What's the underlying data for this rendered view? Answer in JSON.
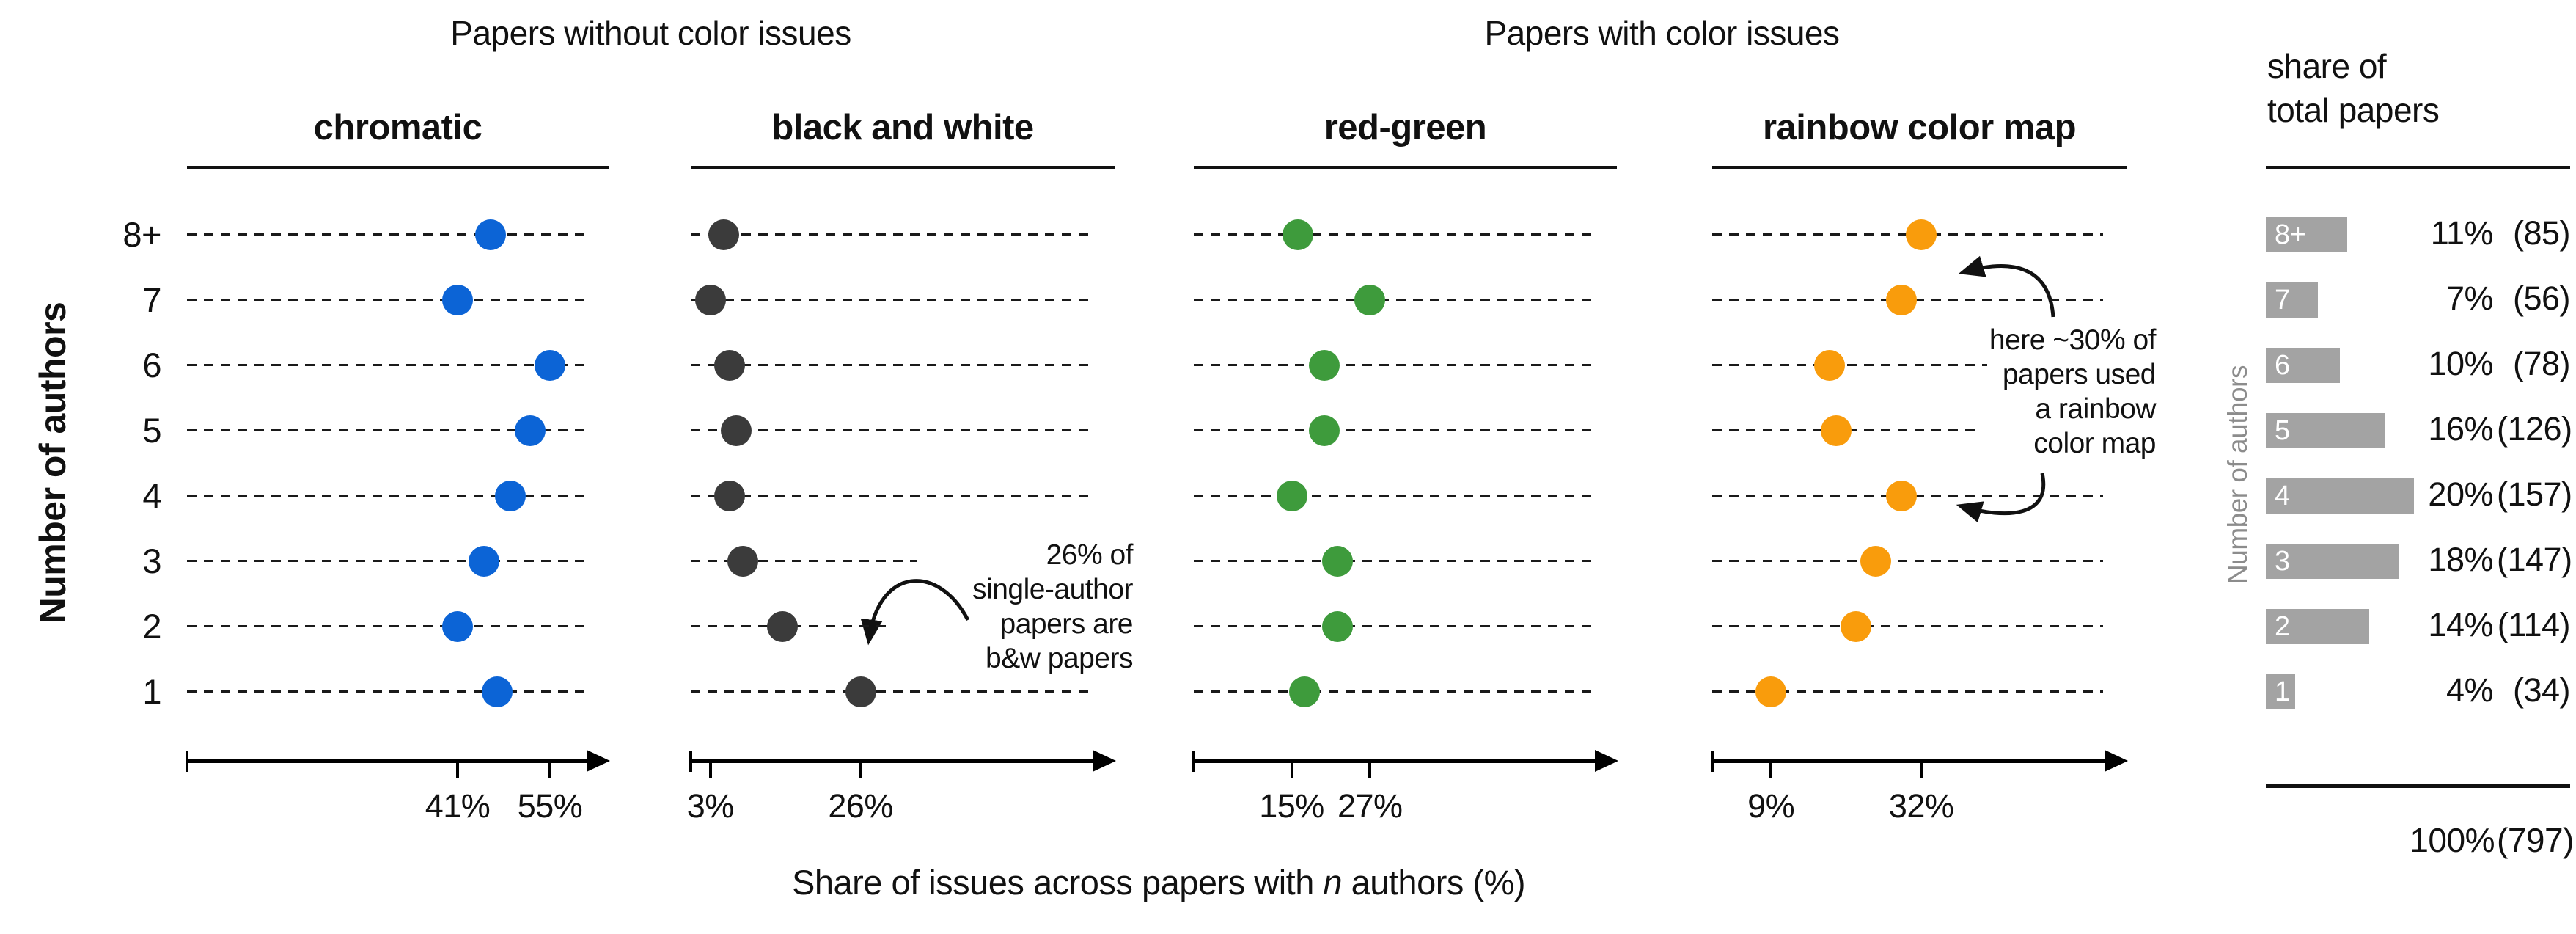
{
  "titles": {
    "group_left": "Papers without color issues",
    "group_right": "Papers with color issues",
    "y_axis_label": "Number of authors"
  },
  "caption": {
    "prefix": "Share of issues across papers with ",
    "italic": "n",
    "suffix": " authors (%)"
  },
  "colors": {
    "chromatic_dot": "#0C64D6",
    "bw_dot": "#3B3B3B",
    "red_green_dot": "#3E9B3C",
    "rainbow_dot": "#F99C0C",
    "bar_gray": "#A3A3A3",
    "axis_black": "#000000",
    "right_label_gray": "#8C8C8C"
  },
  "chart_data": {
    "type": "scatter",
    "subtype": "dot-plot-grid-with-bar-summary",
    "categories": [
      "8+",
      "7",
      "6",
      "5",
      "4",
      "3",
      "2",
      "1"
    ],
    "categories_axis_label": "Number of authors",
    "x_axis_caption": "Share of issues across papers with n authors (%)",
    "dot_panels": [
      {
        "title": "chromatic",
        "group": "Papers without color issues",
        "series": [
          46,
          41,
          55,
          52,
          49,
          45,
          41,
          47
        ],
        "axis_ticks": [
          {
            "value": 41,
            "label": "41%"
          },
          {
            "value": 55,
            "label": "55%"
          }
        ],
        "color": "#0C64D6",
        "xlim": [
          0,
          63
        ]
      },
      {
        "title": "black and white",
        "group": "Papers without color issues",
        "series": [
          5,
          3,
          6,
          7,
          6,
          8,
          14,
          26
        ],
        "axis_ticks": [
          {
            "value": 3,
            "label": "3%"
          },
          {
            "value": 26,
            "label": "26%"
          }
        ],
        "color": "#3B3B3B",
        "xlim": [
          0,
          63
        ]
      },
      {
        "title": "red-green",
        "group": "Papers with color issues",
        "series": [
          16,
          27,
          20,
          20,
          15,
          22,
          22,
          17
        ],
        "axis_ticks": [
          {
            "value": 15,
            "label": "15%"
          },
          {
            "value": 27,
            "label": "27%"
          }
        ],
        "color": "#3E9B3C",
        "xlim": [
          0,
          63
        ]
      },
      {
        "title": "rainbow color map",
        "group": "Papers with color issues",
        "series": [
          32,
          29,
          18,
          19,
          29,
          25,
          22,
          9
        ],
        "axis_ticks": [
          {
            "value": 9,
            "label": "9%"
          },
          {
            "value": 32,
            "label": "32%"
          }
        ],
        "color": "#F99C0C",
        "xlim": [
          0,
          63
        ]
      }
    ],
    "bar_panel": {
      "title_line1": "share of",
      "title_line2": "total papers",
      "axis_label": "Number of authors",
      "values_pct": [
        11,
        7,
        10,
        16,
        20,
        18,
        14,
        4
      ],
      "labels_pct": [
        "11%",
        "7%",
        "10%",
        "16%",
        "20%",
        "18%",
        "14%",
        "4%"
      ],
      "labels_count": [
        "(85)",
        "(56)",
        "(78)",
        "(126)",
        "(157)",
        "(147)",
        "(114)",
        "(34)"
      ],
      "total_pct": "100%",
      "total_count": "(797)",
      "bar_color": "#A3A3A3"
    }
  },
  "annotations": {
    "bw": {
      "lines": [
        "26% of",
        "single-author",
        "papers are",
        "b&w papers"
      ],
      "target": "single-author black-and-white dot (26%)"
    },
    "rainbow": {
      "lines": [
        "here ~30% of",
        "papers used",
        "a rainbow",
        "color map"
      ],
      "targets": "rainbow dots for 7 and 4 authors (~29-30%)"
    }
  }
}
